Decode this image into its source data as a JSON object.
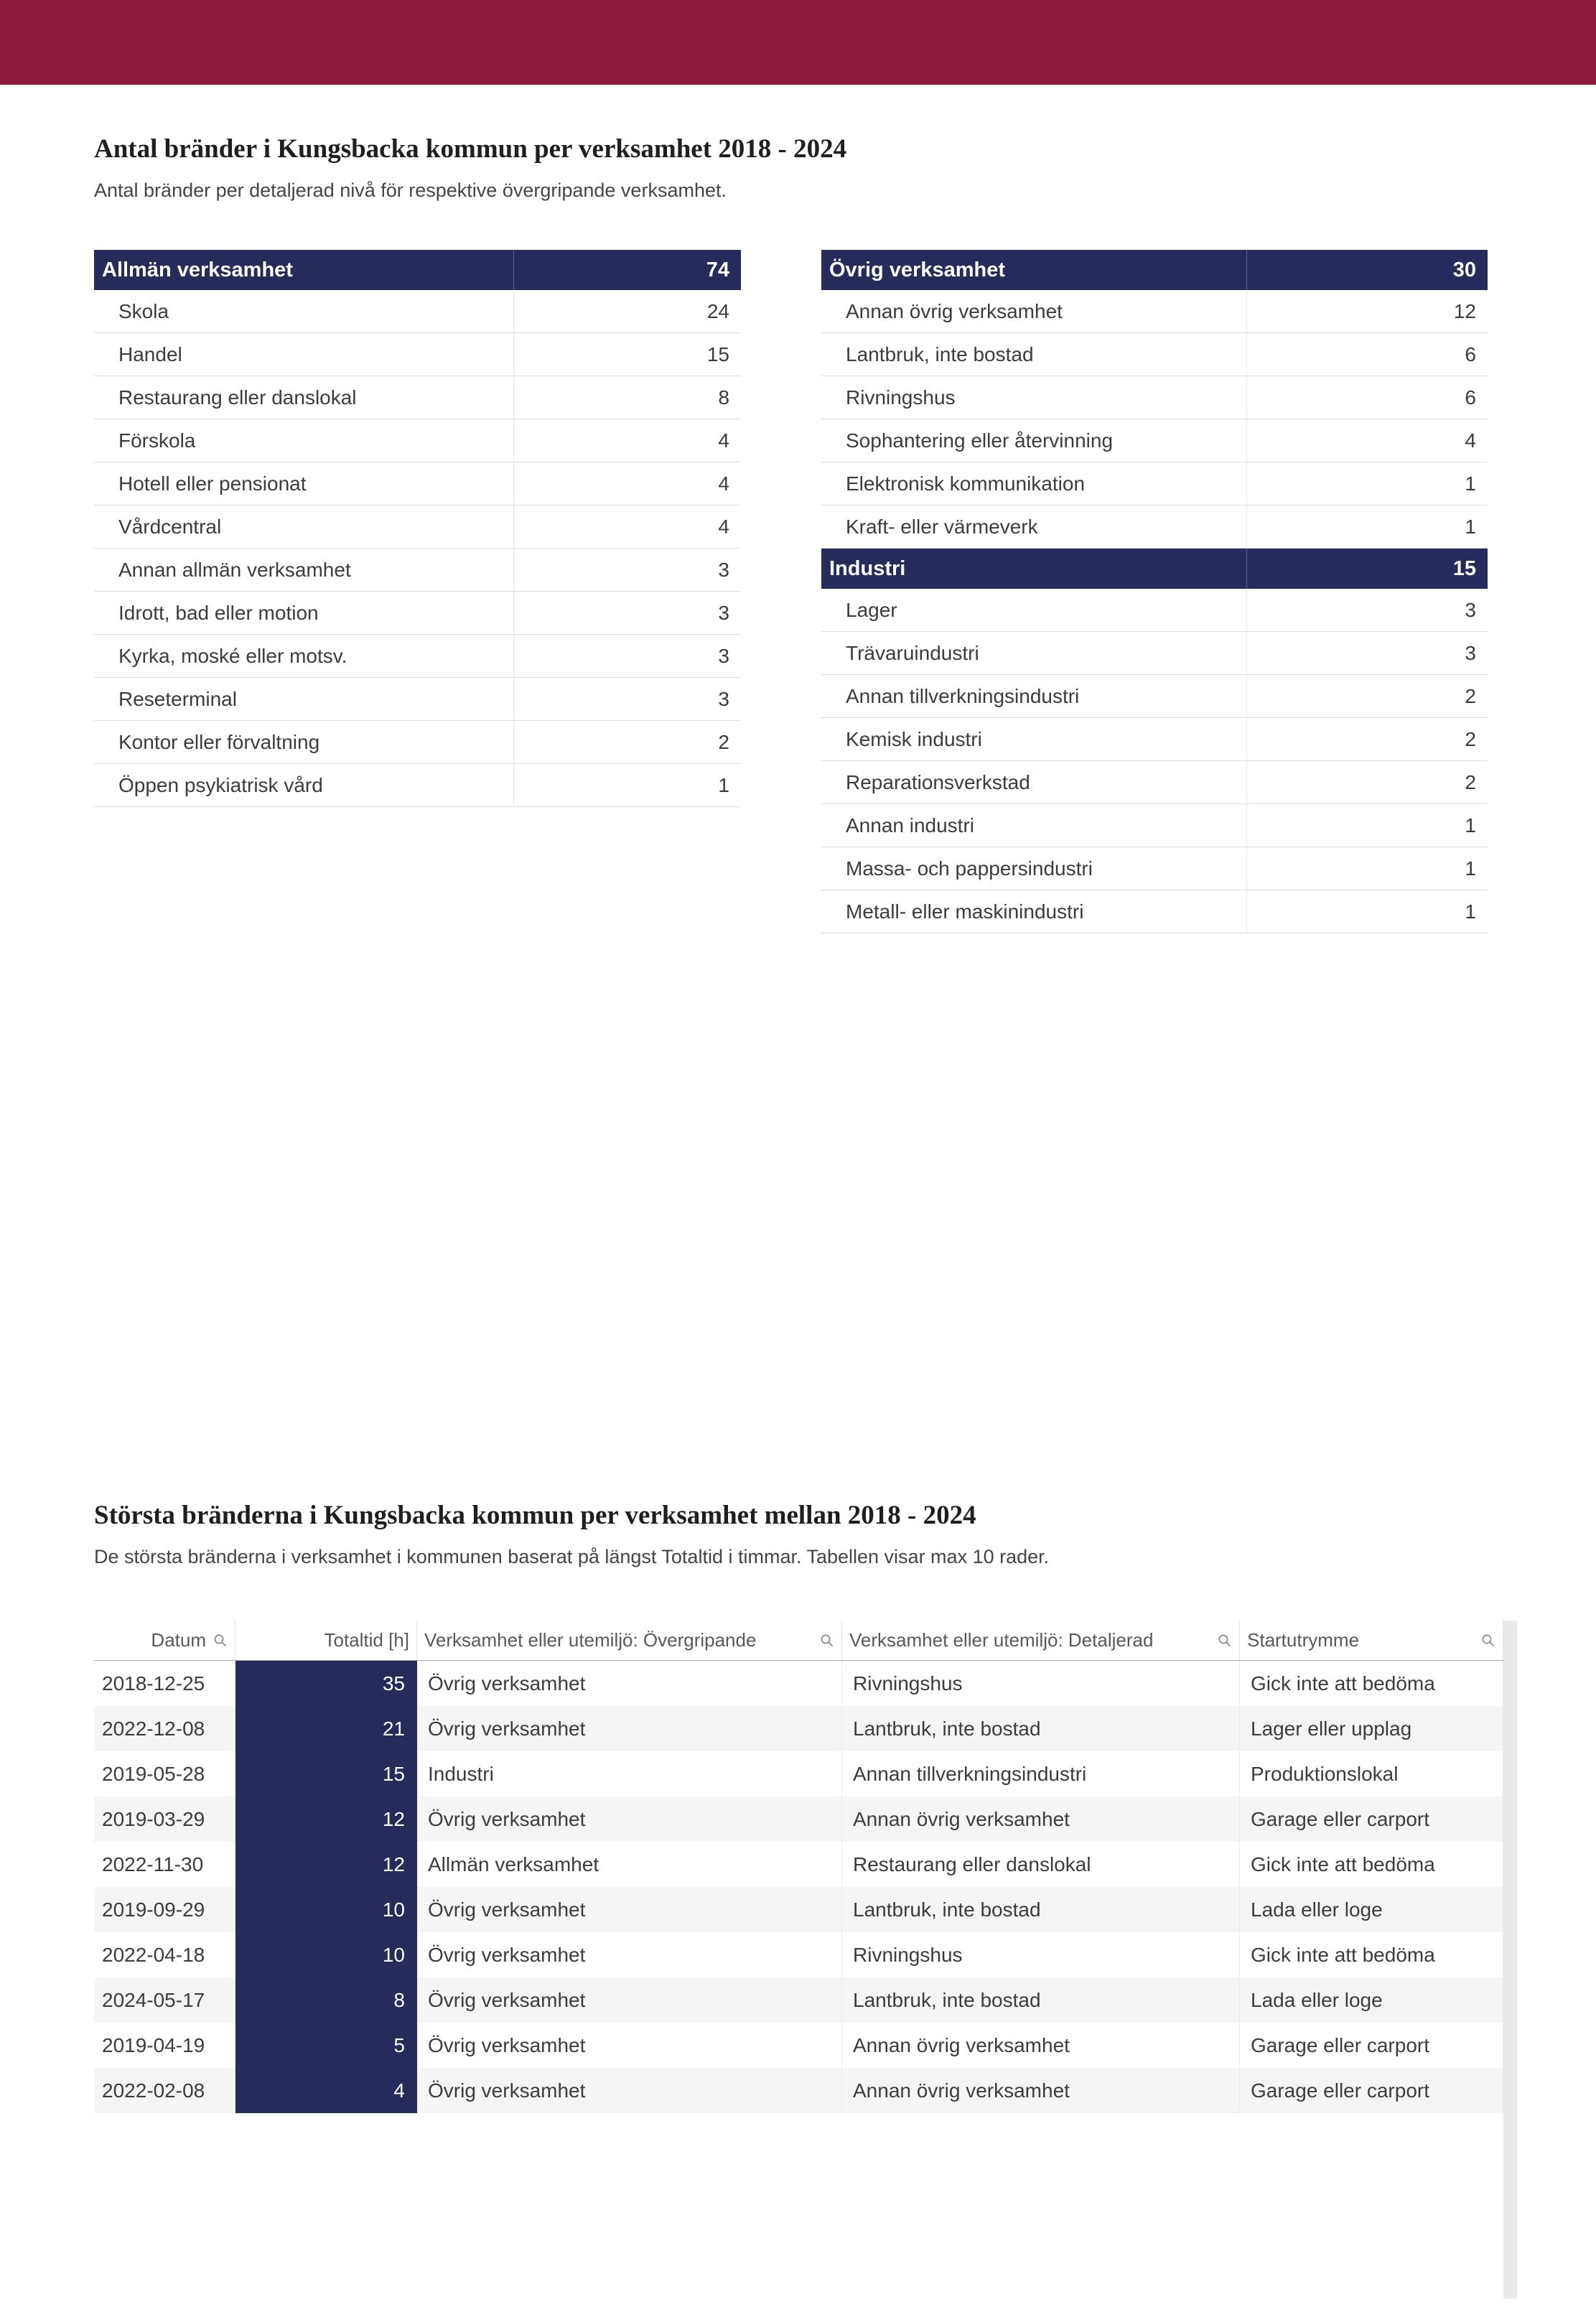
{
  "theme": {
    "brand_maroon": "#8d1c3f",
    "navy": "#262b5c"
  },
  "section1": {
    "title": "Antal bränder i Kungsbacka kommun per verksamhet 2018 - 2024",
    "subtitle": "Antal bränder per detaljerad nivå för respektive övergripande verksamhet.",
    "left_column": [
      {
        "header": "Allmän verksamhet",
        "total": "74",
        "rows": [
          {
            "label": "Skola",
            "value": "24"
          },
          {
            "label": "Handel",
            "value": "15"
          },
          {
            "label": "Restaurang eller danslokal",
            "value": "8"
          },
          {
            "label": "Förskola",
            "value": "4"
          },
          {
            "label": "Hotell eller pensionat",
            "value": "4"
          },
          {
            "label": "Vårdcentral",
            "value": "4"
          },
          {
            "label": "Annan allmän verksamhet",
            "value": "3"
          },
          {
            "label": "Idrott, bad eller motion",
            "value": "3"
          },
          {
            "label": "Kyrka, moské eller motsv.",
            "value": "3"
          },
          {
            "label": "Reseterminal",
            "value": "3"
          },
          {
            "label": "Kontor eller förvaltning",
            "value": "2"
          },
          {
            "label": "Öppen psykiatrisk vård",
            "value": "1"
          }
        ]
      }
    ],
    "right_column": [
      {
        "header": "Övrig verksamhet",
        "total": "30",
        "rows": [
          {
            "label": "Annan övrig verksamhet",
            "value": "12"
          },
          {
            "label": "Lantbruk, inte bostad",
            "value": "6"
          },
          {
            "label": "Rivningshus",
            "value": "6"
          },
          {
            "label": "Sophantering eller återvinning",
            "value": "4"
          },
          {
            "label": "Elektronisk kommunikation",
            "value": "1"
          },
          {
            "label": "Kraft- eller värmeverk",
            "value": "1"
          }
        ]
      },
      {
        "header": "Industri",
        "total": "15",
        "rows": [
          {
            "label": "Lager",
            "value": "3"
          },
          {
            "label": "Trävaruindustri",
            "value": "3"
          },
          {
            "label": "Annan tillverkningsindustri",
            "value": "2"
          },
          {
            "label": "Kemisk industri",
            "value": "2"
          },
          {
            "label": "Reparationsverkstad",
            "value": "2"
          },
          {
            "label": "Annan industri",
            "value": "1"
          },
          {
            "label": "Massa- och pappersindustri",
            "value": "1"
          },
          {
            "label": "Metall- eller maskinindustri",
            "value": "1"
          }
        ]
      }
    ]
  },
  "section2": {
    "title": "Största bränderna i Kungsbacka kommun per verksamhet mellan 2018 - 2024",
    "subtitle": "De största bränderna i verksamhet i kommunen baserat på längst Totaltid i timmar. Tabellen visar max 10 rader.",
    "table": {
      "columns": [
        {
          "key": "datum",
          "label": "Datum",
          "search_icon": true
        },
        {
          "key": "totaltid",
          "label": "Totaltid [h]",
          "search_icon": false
        },
        {
          "key": "overgripande",
          "label": "Verksamhet eller utemiljö: Övergripande",
          "search_icon": true
        },
        {
          "key": "detaljerad",
          "label": "Verksamhet eller utemiljö: Detaljerad",
          "search_icon": true
        },
        {
          "key": "startutrymme",
          "label": "Startutrymme",
          "search_icon": true
        }
      ],
      "rows": [
        [
          "2018-12-25",
          "35",
          "Övrig verksamhet",
          "Rivningshus",
          "Gick inte att bedöma"
        ],
        [
          "2022-12-08",
          "21",
          "Övrig verksamhet",
          "Lantbruk, inte bostad",
          "Lager eller upplag"
        ],
        [
          "2019-05-28",
          "15",
          "Industri",
          "Annan tillverkningsindustri",
          "Produktionslokal"
        ],
        [
          "2019-03-29",
          "12",
          "Övrig verksamhet",
          "Annan övrig verksamhet",
          "Garage eller carport"
        ],
        [
          "2022-11-30",
          "12",
          "Allmän verksamhet",
          "Restaurang eller danslokal",
          "Gick inte att bedöma"
        ],
        [
          "2019-09-29",
          "10",
          "Övrig verksamhet",
          "Lantbruk, inte bostad",
          "Lada eller loge"
        ],
        [
          "2022-04-18",
          "10",
          "Övrig verksamhet",
          "Rivningshus",
          "Gick inte att bedöma"
        ],
        [
          "2024-05-17",
          "8",
          "Övrig verksamhet",
          "Lantbruk, inte bostad",
          "Lada eller loge"
        ],
        [
          "2019-04-19",
          "5",
          "Övrig verksamhet",
          "Annan övrig verksamhet",
          "Garage eller carport"
        ],
        [
          "2022-02-08",
          "4",
          "Övrig verksamhet",
          "Annan övrig verksamhet",
          "Garage eller carport"
        ]
      ]
    }
  }
}
